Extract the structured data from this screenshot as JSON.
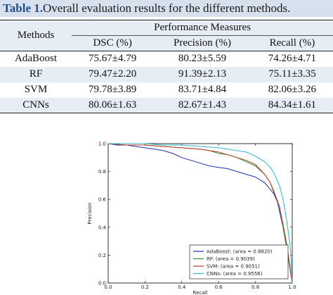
{
  "caption": {
    "label": "Table 1.",
    "text": "Overall evaluation results for the different methods."
  },
  "table": {
    "row_header": "Methods",
    "group_header": "Performance Measures",
    "columns": [
      "DSC (%)",
      "Precision (%)",
      "Recall (%)"
    ],
    "rows": [
      {
        "method": "AdaBoost",
        "dsc": "75.67±4.79",
        "precision": "80.23±5.59",
        "recall": "74.26±4.71"
      },
      {
        "method": "RF",
        "dsc": "79.47±2.20",
        "precision": "91.39±2.13",
        "recall": "75.11±3.35"
      },
      {
        "method": "SVM",
        "dsc": "79.78±3.89",
        "precision": "83.71±4.84",
        "recall": "82.06±3.26"
      },
      {
        "method": "CNNs",
        "dsc": "80.06±1.63",
        "precision": "82.67±1.43",
        "recall": "84.34±1.61"
      }
    ]
  },
  "chart_data": {
    "type": "line",
    "title": "",
    "xlabel": "Recall",
    "ylabel": "Precision",
    "xlim": [
      0.0,
      1.0
    ],
    "ylim": [
      0.0,
      1.0
    ],
    "xticks": [
      "0.0",
      "0.2",
      "0.4",
      "0.6",
      "0.8",
      "1.0"
    ],
    "yticks": [
      "0.0",
      "0.2",
      "0.4",
      "0.6",
      "0.8",
      "1.0"
    ],
    "grid": false,
    "legend_position": "bottom-right",
    "series": [
      {
        "name": "AdaBoost: (area = 0.8820)",
        "color": "#1f2fb8",
        "x": [
          0.0,
          0.05,
          0.1,
          0.15,
          0.2,
          0.25,
          0.3,
          0.35,
          0.4,
          0.45,
          0.5,
          0.55,
          0.6,
          0.65,
          0.7,
          0.75,
          0.8,
          0.85,
          0.9,
          0.92,
          0.95,
          0.97,
          1.0
        ],
        "y": [
          1.0,
          0.99,
          0.99,
          0.98,
          0.97,
          0.96,
          0.95,
          0.93,
          0.9,
          0.88,
          0.86,
          0.84,
          0.83,
          0.82,
          0.8,
          0.78,
          0.76,
          0.72,
          0.64,
          0.58,
          0.4,
          0.25,
          0.0
        ]
      },
      {
        "name": "RF: (area = 0.9039)",
        "color": "#2e8b2e",
        "x": [
          0.0,
          0.1,
          0.2,
          0.3,
          0.4,
          0.5,
          0.55,
          0.6,
          0.65,
          0.7,
          0.75,
          0.8,
          0.85,
          0.88,
          0.9,
          0.93,
          0.95,
          0.97,
          1.0
        ],
        "y": [
          1.0,
          0.99,
          0.99,
          0.98,
          0.97,
          0.96,
          0.95,
          0.93,
          0.92,
          0.9,
          0.87,
          0.84,
          0.78,
          0.72,
          0.66,
          0.55,
          0.4,
          0.25,
          0.0
        ]
      },
      {
        "name": "SVM: (area = 0.9051)",
        "color": "#c0392b",
        "x": [
          0.0,
          0.1,
          0.2,
          0.3,
          0.4,
          0.5,
          0.55,
          0.6,
          0.65,
          0.7,
          0.75,
          0.8,
          0.85,
          0.88,
          0.9,
          0.93,
          0.95,
          0.97,
          1.0
        ],
        "y": [
          1.0,
          0.99,
          0.99,
          0.98,
          0.97,
          0.96,
          0.95,
          0.94,
          0.92,
          0.9,
          0.88,
          0.85,
          0.78,
          0.72,
          0.65,
          0.55,
          0.42,
          0.28,
          0.0
        ]
      },
      {
        "name": "CNNs: (area = 0.9556)",
        "color": "#27b8c9",
        "x": [
          0.0,
          0.1,
          0.2,
          0.3,
          0.4,
          0.5,
          0.6,
          0.65,
          0.7,
          0.75,
          0.8,
          0.85,
          0.88,
          0.9,
          0.93,
          0.95,
          0.97,
          0.99,
          1.0
        ],
        "y": [
          1.0,
          1.0,
          1.0,
          0.99,
          0.99,
          0.98,
          0.97,
          0.96,
          0.95,
          0.94,
          0.91,
          0.87,
          0.83,
          0.79,
          0.7,
          0.6,
          0.45,
          0.25,
          0.0
        ]
      }
    ]
  }
}
